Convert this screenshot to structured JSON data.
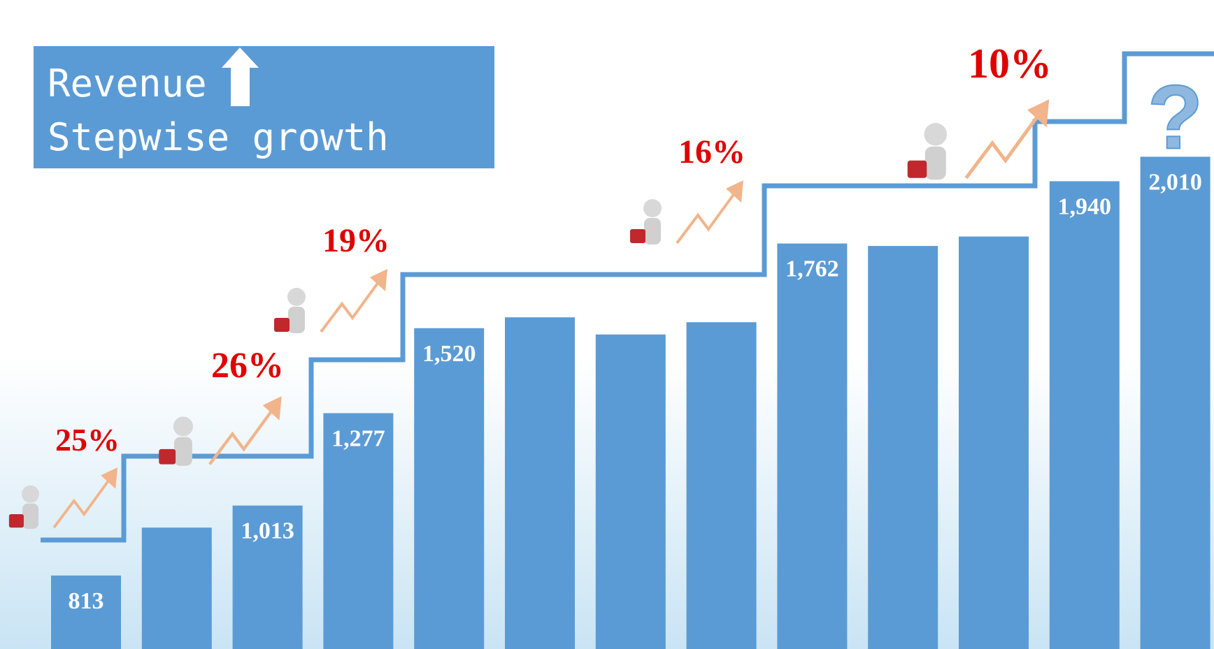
{
  "chart_data": {
    "type": "bar",
    "title": "Revenue",
    "subtitle": "Stepwise growth",
    "categories": [
      null,
      null,
      null,
      null,
      null,
      null,
      null,
      null,
      null,
      null,
      null,
      null,
      null
    ],
    "values": [
      813,
      950,
      1013,
      1277,
      1520,
      1551,
      1502,
      1537,
      1762,
      1755,
      1782,
      1940,
      2010
    ],
    "value_labels": [
      "813",
      null,
      "1,013",
      "1,277",
      "1,520",
      null,
      null,
      null,
      "1,762",
      null,
      null,
      "1,940",
      "2,010"
    ],
    "color": "#5b9bd5",
    "ylim": [
      603,
      2458
    ],
    "annotations": [
      "25%",
      "26%",
      "19%",
      "16%",
      "10%"
    ],
    "last_marker": "?"
  }
}
